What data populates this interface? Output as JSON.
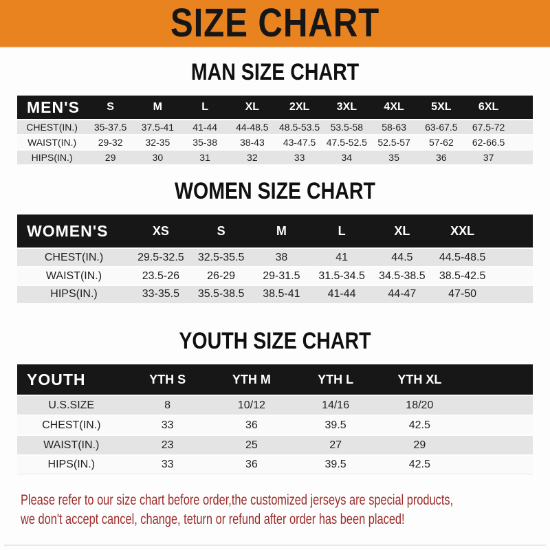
{
  "banner": {
    "title": "SIZE CHART"
  },
  "sections": {
    "men": {
      "heading": "MAN SIZE CHART",
      "header": {
        "label": "MEN'S",
        "sizes": [
          "S",
          "M",
          "L",
          "XL",
          "2XL",
          "3XL",
          "4XL",
          "5XL",
          "6XL"
        ]
      },
      "rows": [
        {
          "label": "CHEST(IN.)",
          "values": [
            "35-37.5",
            "37.5-41",
            "41-44",
            "44-48.5",
            "48.5-53.5",
            "53.5-58",
            "58-63",
            "63-67.5",
            "67.5-72"
          ]
        },
        {
          "label": "WAIST(IN.)",
          "values": [
            "29-32",
            "32-35",
            "35-38",
            "38-43",
            "43-47.5",
            "47.5-52.5",
            "52.5-57",
            "57-62",
            "62-66.5"
          ]
        },
        {
          "label": "HIPS(IN.)",
          "values": [
            "29",
            "30",
            "31",
            "32",
            "33",
            "34",
            "35",
            "36",
            "37"
          ]
        }
      ]
    },
    "women": {
      "heading": "WOMEN SIZE CHART",
      "header": {
        "label": "WOMEN'S",
        "sizes": [
          "XS",
          "S",
          "M",
          "L",
          "XL",
          "XXL"
        ]
      },
      "rows": [
        {
          "label": "CHEST(IN.)",
          "values": [
            "29.5-32.5",
            "32.5-35.5",
            "38",
            "41",
            "44.5",
            "44.5-48.5"
          ]
        },
        {
          "label": "WAIST(IN.)",
          "values": [
            "23.5-26",
            "26-29",
            "29-31.5",
            "31.5-34.5",
            "34.5-38.5",
            "38.5-42.5"
          ]
        },
        {
          "label": "HIPS(IN.)",
          "values": [
            "33-35.5",
            "35.5-38.5",
            "38.5-41",
            "41-44",
            "44-47",
            "47-50"
          ]
        }
      ]
    },
    "youth": {
      "heading": "YOUTH SIZE CHART",
      "header": {
        "label": "YOUTH",
        "sizes": [
          "YTH S",
          "YTH M",
          "YTH L",
          "YTH XL"
        ]
      },
      "rows": [
        {
          "label": "U.S.SIZE",
          "values": [
            "8",
            "10/12",
            "14/16",
            "18/20"
          ]
        },
        {
          "label": "CHEST(IN.)",
          "values": [
            "33",
            "36",
            "39.5",
            "42.5"
          ]
        },
        {
          "label": "WAIST(IN.)",
          "values": [
            "23",
            "25",
            "27",
            "29"
          ]
        },
        {
          "label": "HIPS(IN.)",
          "values": [
            "33",
            "36",
            "39.5",
            "42.5"
          ]
        }
      ]
    }
  },
  "footer": {
    "line1": "Please refer to our size chart before order,the customized jerseys are special products,",
    "line2": "we don't accept cancel, change, teturn or refund after order has been placed!"
  },
  "colors": {
    "banner_orange": "#E8831F",
    "table_header_black": "#171717",
    "row_gray": "#E4E4E4",
    "footer_red": "#9C2B28"
  }
}
